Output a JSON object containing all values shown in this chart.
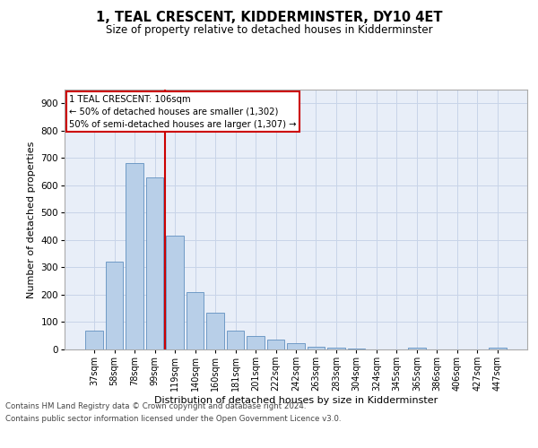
{
  "title": "1, TEAL CRESCENT, KIDDERMINSTER, DY10 4ET",
  "subtitle": "Size of property relative to detached houses in Kidderminster",
  "xlabel": "Distribution of detached houses by size in Kidderminster",
  "ylabel": "Number of detached properties",
  "categories": [
    "37sqm",
    "58sqm",
    "78sqm",
    "99sqm",
    "119sqm",
    "140sqm",
    "160sqm",
    "181sqm",
    "201sqm",
    "222sqm",
    "242sqm",
    "263sqm",
    "283sqm",
    "304sqm",
    "324sqm",
    "345sqm",
    "365sqm",
    "386sqm",
    "406sqm",
    "427sqm",
    "447sqm"
  ],
  "values": [
    70,
    320,
    680,
    630,
    415,
    210,
    135,
    70,
    48,
    35,
    22,
    10,
    7,
    2,
    0,
    0,
    7,
    0,
    0,
    0,
    7
  ],
  "bar_color": "#b8cfe8",
  "bar_edge_color": "#6090c0",
  "bar_edge_width": 0.6,
  "vline_x": 3.5,
  "vline_color": "#cc0000",
  "annotation_text": "1 TEAL CRESCENT: 106sqm\n← 50% of detached houses are smaller (1,302)\n50% of semi-detached houses are larger (1,307) →",
  "annotation_box_color": "#ffffff",
  "annotation_box_edge_color": "#cc0000",
  "grid_color": "#c8d4e8",
  "background_color": "#e8eef8",
  "footer_line1": "Contains HM Land Registry data © Crown copyright and database right 2024.",
  "footer_line2": "Contains public sector information licensed under the Open Government Licence v3.0.",
  "ylim": [
    0,
    950
  ],
  "yticks": [
    0,
    100,
    200,
    300,
    400,
    500,
    600,
    700,
    800,
    900
  ]
}
